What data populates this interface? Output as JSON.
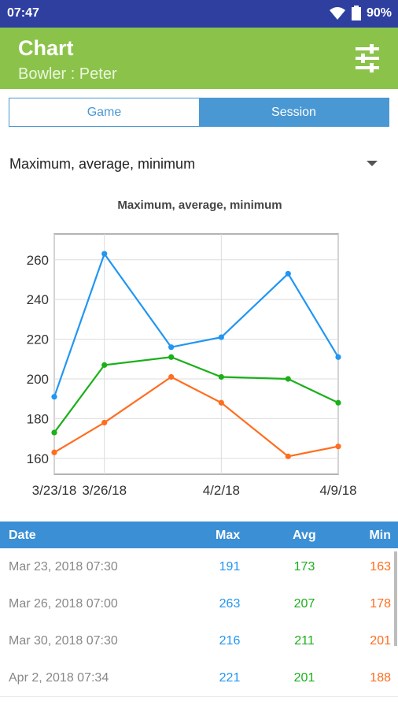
{
  "status_bar": {
    "time": "07:47",
    "battery": "90%"
  },
  "app_bar": {
    "title": "Chart",
    "subtitle": "Bowler : Peter"
  },
  "tabs": [
    {
      "label": "Game",
      "active": false
    },
    {
      "label": "Session",
      "active": true
    }
  ],
  "dropdown": {
    "selected": "Maximum, average, minimum"
  },
  "colors": {
    "max": "#2196f3",
    "avg": "#1ab01a",
    "min": "#ff6d1f",
    "accent": "#8bc34a",
    "header": "#3b8fd4"
  },
  "chart_data": {
    "type": "line",
    "title": "Maximum, average, minimum",
    "x_ticks": [
      "3/23/18",
      "3/26/18",
      "4/2/18",
      "4/9/18"
    ],
    "x": [
      "3/23/18",
      "3/26/18",
      "3/30/18",
      "4/2/18",
      "4/6/18",
      "4/9/18"
    ],
    "ylim": [
      152,
      273
    ],
    "y_ticks": [
      160,
      180,
      200,
      220,
      240,
      260
    ],
    "series": [
      {
        "key": "max",
        "values": [
          191,
          263,
          216,
          221,
          253,
          211
        ]
      },
      {
        "key": "avg",
        "values": [
          173,
          207,
          211,
          201,
          200,
          188
        ]
      },
      {
        "key": "min",
        "values": [
          163,
          178,
          201,
          188,
          161,
          166
        ]
      }
    ],
    "grid": true
  },
  "table": {
    "headers": {
      "date": "Date",
      "max": "Max",
      "avg": "Avg",
      "min": "Min"
    },
    "rows": [
      {
        "date": "Mar 23, 2018 07:30",
        "max": "191",
        "avg": "173",
        "min": "163"
      },
      {
        "date": "Mar 26, 2018 07:00",
        "max": "263",
        "avg": "207",
        "min": "178"
      },
      {
        "date": "Mar 30, 2018 07:30",
        "max": "216",
        "avg": "211",
        "min": "201"
      },
      {
        "date": "Apr 2, 2018 07:34",
        "max": "221",
        "avg": "201",
        "min": "188"
      }
    ]
  }
}
